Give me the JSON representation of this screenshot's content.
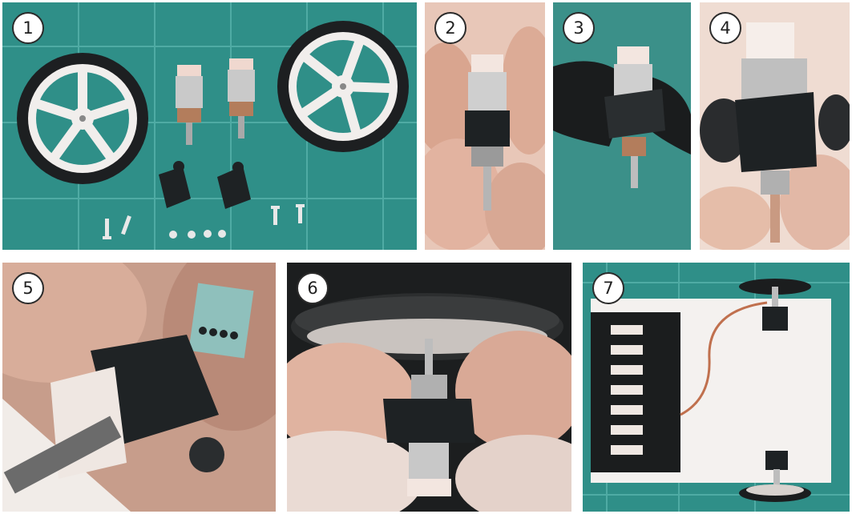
{
  "colors": {
    "mat_green": "#2f8f88",
    "grid_line": "#58b3ac",
    "skin": "#e9b49f",
    "skin_dark": "#c98c7a",
    "plastic_black": "#1e2224",
    "metal": "#cfcfcf",
    "connector": "#f3e6e0",
    "wheel_white": "#f1eeec",
    "badge_bg": "#ffffff"
  },
  "panels": [
    {
      "number": "1",
      "subject": "parts-layout"
    },
    {
      "number": "2",
      "subject": "motor-in-hands"
    },
    {
      "number": "3",
      "subject": "motor-with-bracket"
    },
    {
      "number": "4",
      "subject": "motor-bracket-closeup"
    },
    {
      "number": "5",
      "subject": "bracket-mounted-motor"
    },
    {
      "number": "6",
      "subject": "wheel-attached"
    },
    {
      "number": "7",
      "subject": "assembled-chassis"
    }
  ]
}
